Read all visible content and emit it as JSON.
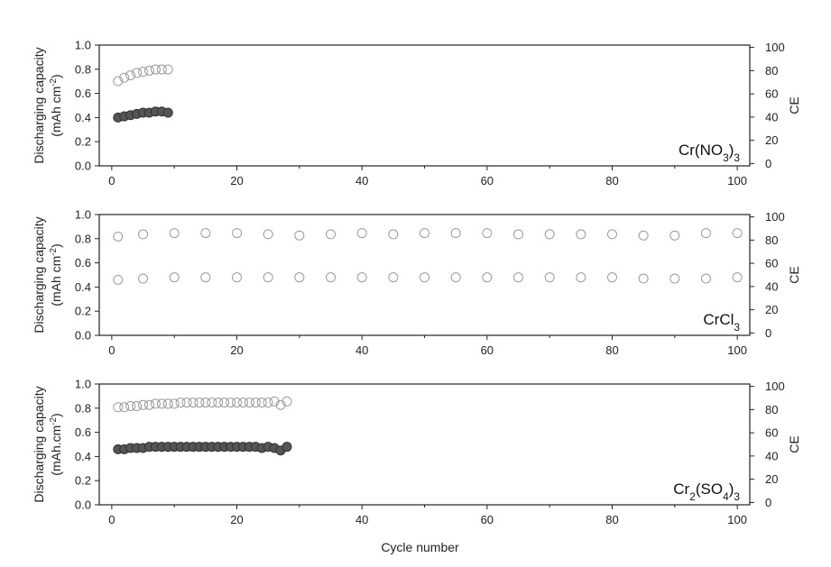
{
  "chart_data": [
    {
      "type": "scatter",
      "panel_label": "Cr(NO3)3",
      "panel_label_parts": [
        {
          "t": "Cr(NO"
        },
        {
          "t": "3",
          "sub": true
        },
        {
          "t": ")"
        },
        {
          "t": "3",
          "sub": true
        }
      ],
      "ylabel_line1": "Discharging capacity",
      "ylabel_line2_parts": [
        {
          "t": "(mAh cm"
        },
        {
          "t": "-2",
          "sup": true
        },
        {
          "t": ")"
        }
      ],
      "y2label": "CE",
      "xlim": [
        -2,
        102
      ],
      "ylim": [
        0,
        1.0
      ],
      "y2lim": [
        -2,
        102
      ],
      "xticks": [
        0,
        20,
        40,
        60,
        80,
        100
      ],
      "yticks": [
        0.0,
        0.2,
        0.4,
        0.6,
        0.8,
        1.0
      ],
      "y2ticks": [
        0,
        20,
        40,
        60,
        80,
        100
      ],
      "series": [
        {
          "axis": "right",
          "style": "open",
          "x": [
            1,
            2,
            3,
            4,
            5,
            6,
            7,
            8,
            9
          ],
          "y": [
            71,
            74,
            76,
            78,
            79,
            80,
            81,
            81,
            81
          ]
        },
        {
          "axis": "left",
          "style": "filled",
          "x": [
            1,
            2,
            3,
            4,
            5,
            6,
            7,
            8,
            9
          ],
          "y": [
            0.4,
            0.41,
            0.42,
            0.43,
            0.44,
            0.44,
            0.45,
            0.45,
            0.44
          ]
        }
      ]
    },
    {
      "type": "scatter",
      "panel_label": "CrCl3",
      "panel_label_parts": [
        {
          "t": "CrCl"
        },
        {
          "t": "3",
          "sub": true
        }
      ],
      "ylabel_line1": "Discharging capacity",
      "ylabel_line2_parts": [
        {
          "t": "(mAh cm"
        },
        {
          "t": "-2",
          "sup": true
        },
        {
          "t": ")"
        }
      ],
      "y2label": "CE",
      "xlim": [
        -2,
        102
      ],
      "ylim": [
        0,
        1.0
      ],
      "y2lim": [
        -2,
        102
      ],
      "xticks": [
        0,
        20,
        40,
        60,
        80,
        100
      ],
      "yticks": [
        0.0,
        0.2,
        0.4,
        0.6,
        0.8,
        1.0
      ],
      "y2ticks": [
        0,
        20,
        40,
        60,
        80,
        100
      ],
      "series": [
        {
          "axis": "right",
          "style": "open",
          "x": [
            1,
            5,
            10,
            15,
            20,
            25,
            30,
            35,
            40,
            45,
            50,
            55,
            60,
            65,
            70,
            75,
            80,
            85,
            90,
            95,
            100
          ],
          "y": [
            83,
            85,
            86,
            86,
            86,
            85,
            84,
            85,
            86,
            85,
            86,
            86,
            86,
            85,
            85,
            85,
            85,
            84,
            84,
            86,
            86
          ]
        },
        {
          "axis": "left",
          "style": "open",
          "x": [
            1,
            5,
            10,
            15,
            20,
            25,
            30,
            35,
            40,
            45,
            50,
            55,
            60,
            65,
            70,
            75,
            80,
            85,
            90,
            95,
            100
          ],
          "y": [
            0.46,
            0.47,
            0.48,
            0.48,
            0.48,
            0.48,
            0.48,
            0.48,
            0.48,
            0.48,
            0.48,
            0.48,
            0.48,
            0.48,
            0.48,
            0.48,
            0.48,
            0.47,
            0.47,
            0.47,
            0.48
          ]
        }
      ]
    },
    {
      "type": "scatter",
      "panel_label": "Cr2(SO4)3",
      "panel_label_parts": [
        {
          "t": "Cr"
        },
        {
          "t": "2",
          "sub": true
        },
        {
          "t": "(SO"
        },
        {
          "t": "4",
          "sub": true
        },
        {
          "t": ")"
        },
        {
          "t": "3",
          "sub": true
        }
      ],
      "ylabel_line1": "Discharging capacity",
      "ylabel_line2_parts": [
        {
          "t": "(mAh.cm"
        },
        {
          "t": "-2",
          "sup": true
        },
        {
          "t": ")"
        }
      ],
      "y2label": "CE",
      "xlabel": "Cycle number",
      "xlim": [
        -2,
        102
      ],
      "ylim": [
        0,
        1.0
      ],
      "y2lim": [
        -2,
        102
      ],
      "xticks": [
        0,
        20,
        40,
        60,
        80,
        100
      ],
      "yticks": [
        0.0,
        0.2,
        0.4,
        0.6,
        0.8,
        1.0
      ],
      "y2ticks": [
        0,
        20,
        40,
        60,
        80,
        100
      ],
      "series": [
        {
          "axis": "right",
          "style": "open",
          "x": [
            1,
            2,
            3,
            4,
            5,
            6,
            7,
            8,
            9,
            10,
            11,
            12,
            13,
            14,
            15,
            16,
            17,
            18,
            19,
            20,
            21,
            22,
            23,
            24,
            25,
            26,
            27,
            28
          ],
          "y": [
            82,
            82,
            83,
            83,
            84,
            84,
            85,
            85,
            85,
            85,
            86,
            86,
            86,
            86,
            86,
            86,
            86,
            86,
            86,
            86,
            86,
            86,
            86,
            86,
            86,
            87,
            84,
            87
          ]
        },
        {
          "axis": "left",
          "style": "filled",
          "x": [
            1,
            2,
            3,
            4,
            5,
            6,
            7,
            8,
            9,
            10,
            11,
            12,
            13,
            14,
            15,
            16,
            17,
            18,
            19,
            20,
            21,
            22,
            23,
            24,
            25,
            26,
            27,
            28
          ],
          "y": [
            0.46,
            0.46,
            0.47,
            0.47,
            0.47,
            0.48,
            0.48,
            0.48,
            0.48,
            0.48,
            0.48,
            0.48,
            0.48,
            0.48,
            0.48,
            0.48,
            0.48,
            0.48,
            0.48,
            0.48,
            0.48,
            0.48,
            0.48,
            0.47,
            0.48,
            0.47,
            0.45,
            0.48
          ]
        }
      ]
    }
  ]
}
